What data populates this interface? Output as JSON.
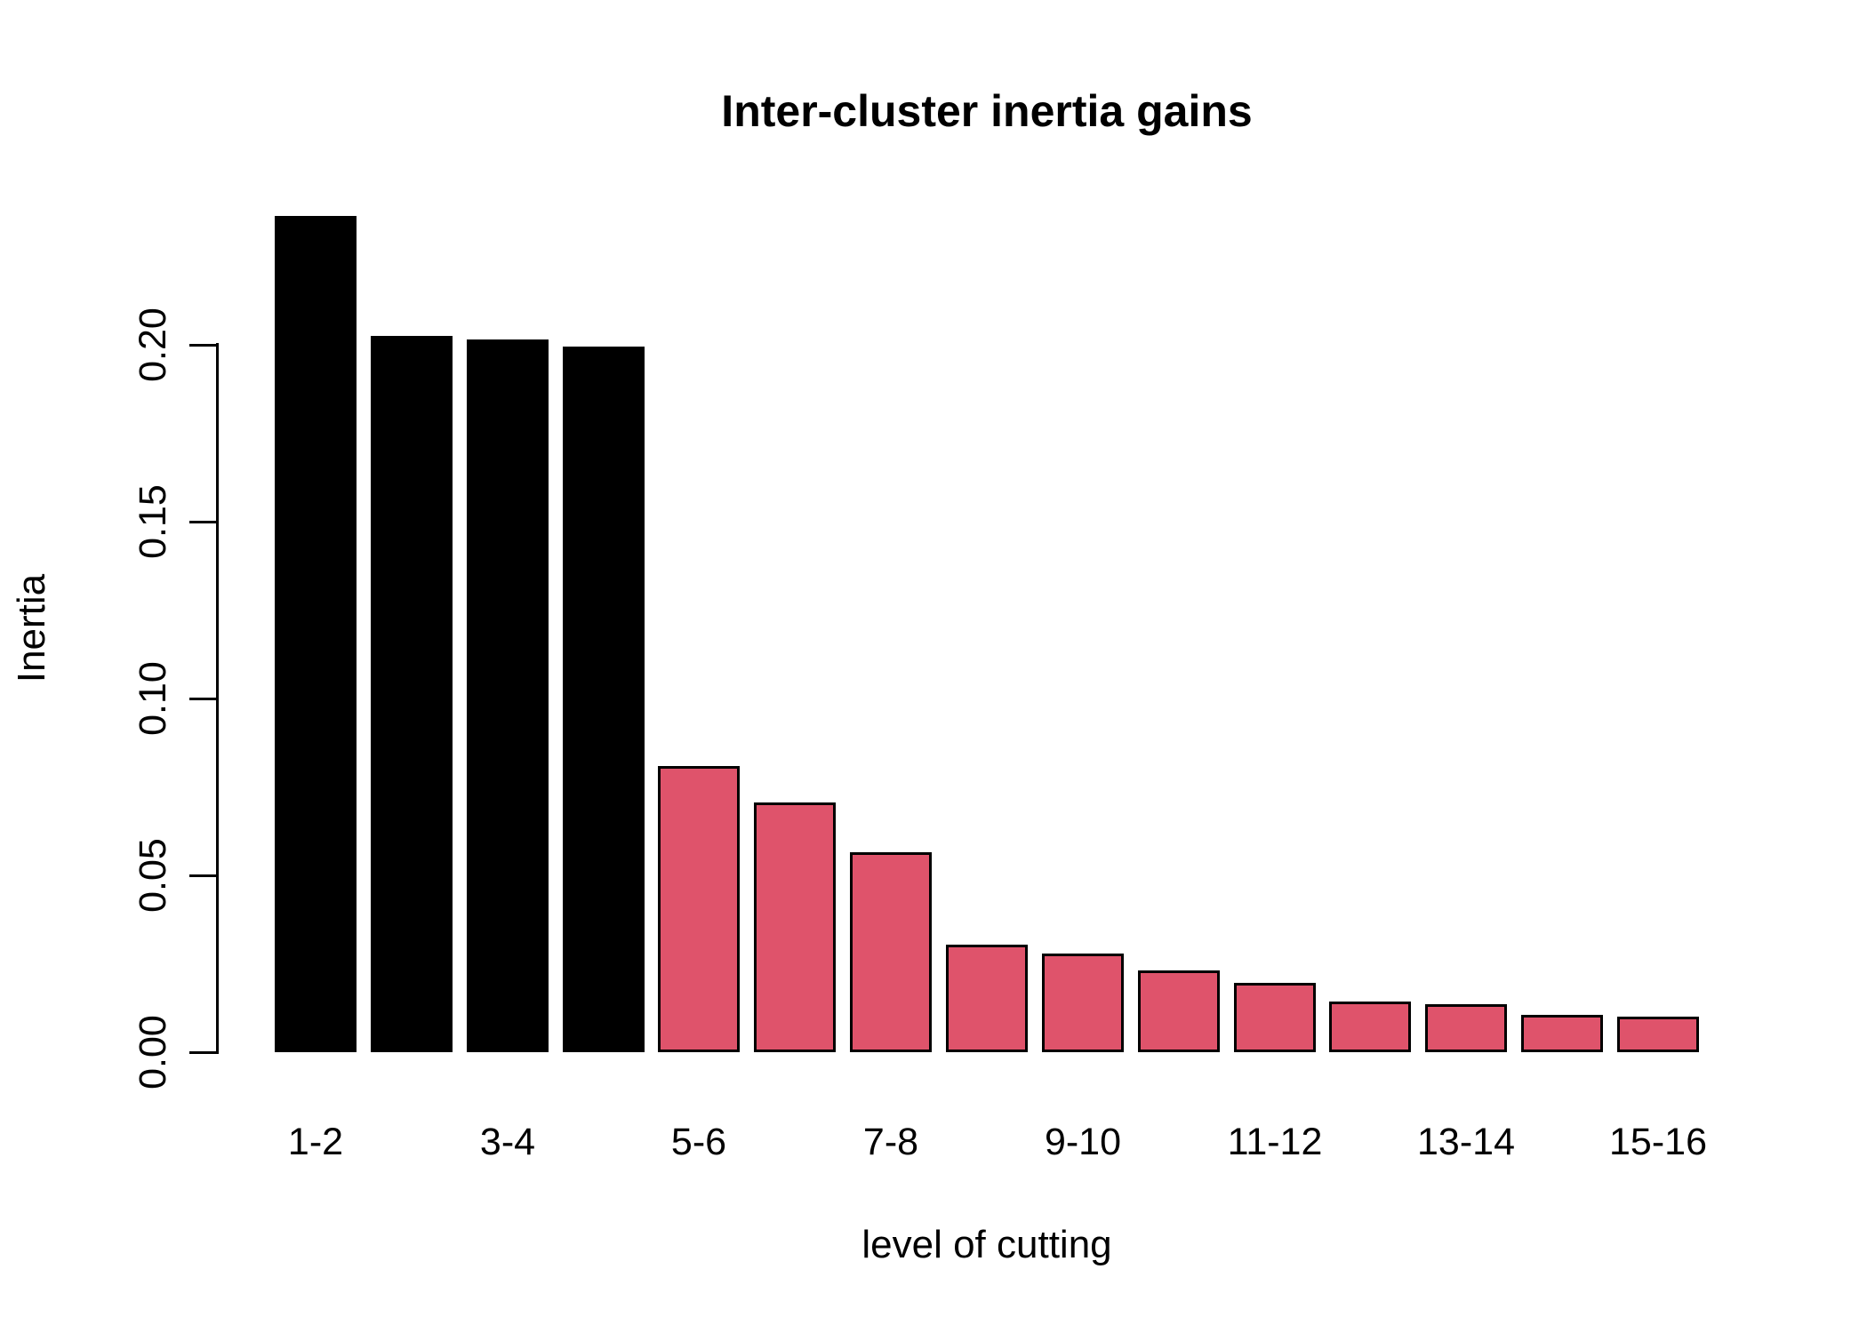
{
  "chart_data": {
    "type": "bar",
    "title": "Inter-cluster inertia gains",
    "xlabel": "level of cutting",
    "ylabel": "Inertia",
    "x_tick_labels": [
      "1-2",
      "3-4",
      "5-6",
      "7-8",
      "9-10",
      "11-12",
      "13-14",
      "15-16"
    ],
    "x_tick_bar_index": [
      0,
      2,
      4,
      6,
      8,
      10,
      12,
      14
    ],
    "y_ticks": [
      0.0,
      0.05,
      0.1,
      0.15,
      0.2
    ],
    "y_tick_labels": [
      "0.00",
      "0.05",
      "0.10",
      "0.15",
      "0.20"
    ],
    "ylim": [
      0,
      0.2365
    ],
    "grid": false,
    "legend": false,
    "categories": [
      "1",
      "2",
      "3",
      "4",
      "5",
      "6",
      "7",
      "8",
      "9",
      "10",
      "11",
      "12",
      "13",
      "14",
      "15"
    ],
    "values": [
      0.2365,
      0.2025,
      0.2015,
      0.1995,
      0.081,
      0.0705,
      0.0565,
      0.0305,
      0.0278,
      0.0232,
      0.0196,
      0.0144,
      0.0136,
      0.0106,
      0.01
    ],
    "bar_colors": [
      "black",
      "black",
      "black",
      "black",
      "pink",
      "pink",
      "pink",
      "pink",
      "pink",
      "pink",
      "pink",
      "pink",
      "pink",
      "pink",
      "pink"
    ],
    "colors": {
      "black_bar_fill": "#000000",
      "highlight_bar_fill": "#DF536B",
      "bar_border": "#000000",
      "axis": "#000000",
      "text": "#000000",
      "background": "#FFFFFF"
    }
  }
}
